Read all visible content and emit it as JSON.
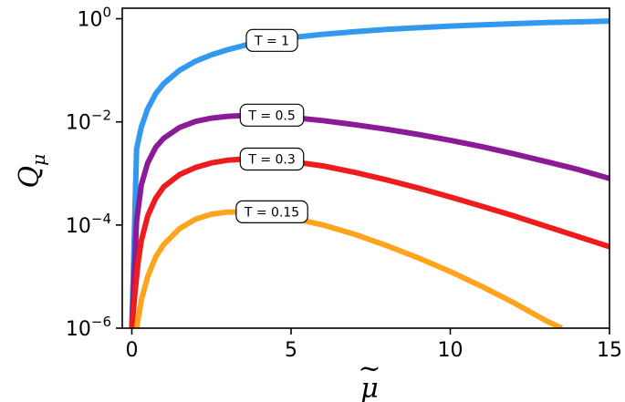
{
  "chart_data": {
    "type": "line",
    "title": "",
    "xlabel": "μ",
    "xlabel_accent": "~",
    "ylabel": "Q",
    "ylabel_sub": "μ",
    "xlim": [
      -0.3,
      15
    ],
    "ylim": [
      1e-06,
      1.6
    ],
    "yscale": "log",
    "grid": false,
    "legend": "none",
    "x_ticks": [
      0,
      5,
      10,
      15
    ],
    "x_tick_labels": [
      "0",
      "5",
      "10",
      "15"
    ],
    "y_ticks": [
      1,
      0.01,
      0.0001,
      1e-06
    ],
    "y_tick_labels": [
      {
        "base": "10",
        "exp": "0"
      },
      {
        "base": "10",
        "exp": "−2"
      },
      {
        "base": "10",
        "exp": "−4"
      },
      {
        "base": "10",
        "exp": "−6"
      }
    ],
    "series": [
      {
        "color": "#3399ee",
        "x": [
          0,
          0.15,
          0.3,
          0.5,
          0.75,
          1,
          1.5,
          2,
          2.5,
          3,
          3.5,
          4,
          5,
          6,
          7,
          8,
          9,
          10,
          11,
          12,
          13,
          14,
          15
        ],
        "y": [
          1e-06,
          0.003,
          0.008,
          0.018,
          0.035,
          0.055,
          0.1,
          0.15,
          0.2,
          0.25,
          0.3,
          0.35,
          0.43,
          0.5,
          0.56,
          0.62,
          0.67,
          0.72,
          0.76,
          0.8,
          0.84,
          0.87,
          0.9
        ]
      },
      {
        "color": "#8b1a96",
        "x": [
          0,
          0.15,
          0.3,
          0.5,
          0.75,
          1,
          1.5,
          2,
          2.5,
          3,
          3.5,
          4,
          5,
          6,
          7,
          8,
          9,
          10,
          11,
          12,
          13,
          14,
          15
        ],
        "y": [
          1e-06,
          0.00012,
          0.0006,
          0.0016,
          0.0032,
          0.0048,
          0.0078,
          0.0102,
          0.0118,
          0.0128,
          0.0132,
          0.0132,
          0.0122,
          0.0106,
          0.0088,
          0.0072,
          0.0057,
          0.0044,
          0.0033,
          0.0024,
          0.0017,
          0.0012,
          0.0008
        ]
      },
      {
        "color": "#ee1c1c",
        "x": [
          0,
          0.1,
          0.2,
          0.3,
          0.5,
          0.75,
          1,
          1.5,
          2,
          2.5,
          3,
          3.5,
          4,
          5,
          6,
          7,
          8,
          9,
          10,
          11,
          12,
          13,
          14,
          15
        ],
        "y": [
          1e-06,
          5e-06,
          2e-05,
          5e-05,
          0.00015,
          0.00033,
          0.00055,
          0.00095,
          0.0013,
          0.0016,
          0.0018,
          0.0019,
          0.0019,
          0.0017,
          0.0014,
          0.00105,
          0.00075,
          0.00052,
          0.00035,
          0.00023,
          0.00015,
          9.5e-05,
          6e-05,
          3.8e-05
        ]
      },
      {
        "color": "#ffa41c",
        "x": [
          0.15,
          0.3,
          0.5,
          0.75,
          1,
          1.5,
          2,
          2.5,
          3,
          3.5,
          4,
          5,
          6,
          7,
          8,
          9,
          10,
          11,
          12,
          13,
          13.5
        ],
        "y": [
          1e-06,
          3.5e-06,
          1e-05,
          2.4e-05,
          4.2e-05,
          8.5e-05,
          0.00013,
          0.000162,
          0.000178,
          0.00018,
          0.000172,
          0.000138,
          0.0001,
          6.6e-05,
          4e-05,
          2.3e-05,
          1.25e-05,
          6.4e-06,
          3.1e-06,
          1.4e-06,
          1e-06
        ]
      }
    ],
    "annotations": [
      {
        "text": "T = 1",
        "x": 4.4,
        "y": 0.38
      },
      {
        "text": "T = 0.5",
        "x": 4.4,
        "y": 0.0135
      },
      {
        "text": "T = 0.3",
        "x": 4.4,
        "y": 0.0019
      },
      {
        "text": "T = 0.15",
        "x": 4.4,
        "y": 0.00018
      }
    ]
  }
}
